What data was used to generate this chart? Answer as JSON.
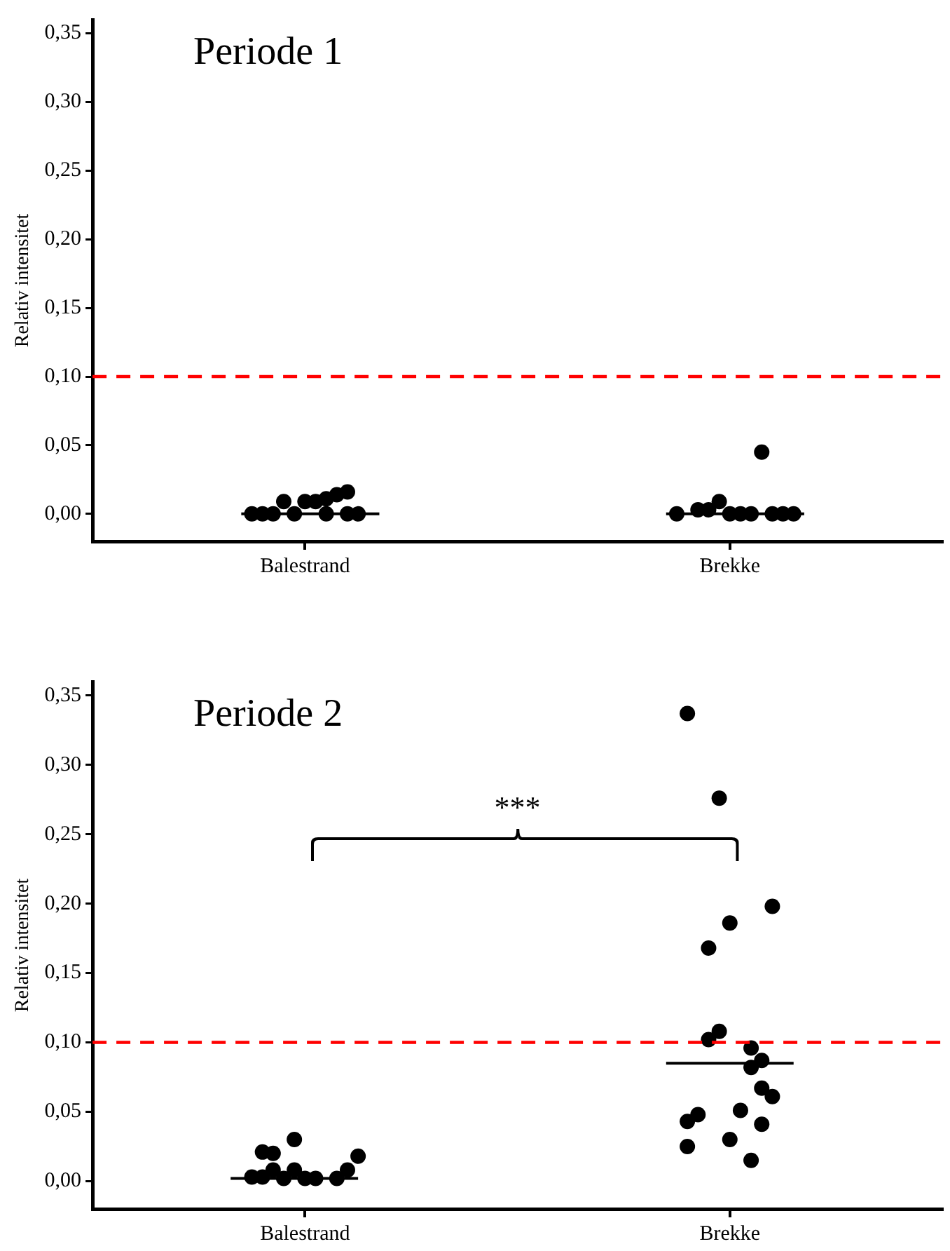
{
  "chart_data": [
    {
      "type": "scatter",
      "title": "Periode 1",
      "ylabel": "Relativ intensitet",
      "categories": [
        null,
        null,
        null,
        null,
        null,
        null,
        null,
        null,
        null,
        null,
        null,
        null,
        null,
        null,
        null,
        null,
        null,
        null,
        null,
        null,
        "Balestrand",
        null,
        null,
        null,
        null,
        null,
        null,
        null,
        null,
        null,
        null,
        null,
        null,
        null,
        null,
        null,
        null,
        null,
        null,
        null,
        null,
        null,
        null,
        null,
        null,
        null,
        null,
        null,
        null,
        null,
        null,
        null,
        null,
        null,
        null,
        null,
        null,
        null,
        null,
        null,
        "Brekke",
        null,
        null,
        null,
        null,
        null,
        null,
        null,
        null,
        null,
        null,
        null,
        null,
        null,
        null,
        null,
        null,
        null,
        null,
        null,
        null
      ],
      "ylim": [
        -0.02,
        0.36
      ],
      "yticks": [
        {
          "value": 0,
          "label": "0,00"
        },
        {
          "value": 0.05,
          "label": "0,05"
        },
        {
          "value": 0.1,
          "label": "0,10"
        },
        {
          "value": 0.15,
          "label": "0,15"
        },
        {
          "value": 0.2,
          "label": "0,20"
        },
        {
          "value": 0.25,
          "label": "0,25"
        },
        {
          "value": 0.3,
          "label": "0,30"
        },
        {
          "value": 0.35,
          "label": "0,35"
        }
      ],
      "grid": false,
      "legend": false,
      "marker": "circle",
      "ref_lines": [
        {
          "axis": "y",
          "value": 0.1,
          "color": "#ff0000",
          "line_style": "dashed"
        }
      ],
      "series": [
        {
          "type": "scatter",
          "color": "#000000",
          "values": [
            null,
            null,
            null,
            null,
            null,
            null,
            null,
            null,
            null,
            null,
            null,
            null,
            null,
            null,
            null,
            0,
            0,
            0,
            0.009,
            0,
            0.009,
            0.009,
            0.011,
            0.014,
            0.016,
            0,
            null,
            null,
            null,
            null,
            null,
            null,
            null,
            null,
            null,
            null,
            null,
            null,
            null,
            null,
            null,
            null,
            null,
            null,
            null,
            null,
            null,
            null,
            null,
            null,
            null,
            null,
            null,
            null,
            null,
            0,
            null,
            0.003,
            0.003,
            0.009,
            0,
            0,
            0,
            0.045,
            0,
            0,
            0,
            null,
            null,
            null,
            null,
            null,
            null,
            null,
            null,
            null,
            null,
            null,
            null,
            null,
            null
          ]
        },
        {
          "type": "scatter",
          "color": "#000000",
          "values": [
            null,
            null,
            null,
            null,
            null,
            null,
            null,
            null,
            null,
            null,
            null,
            null,
            null,
            null,
            null,
            null,
            null,
            null,
            null,
            null,
            null,
            null,
            0,
            null,
            0,
            null,
            null,
            null,
            null,
            null,
            null,
            null,
            null,
            null,
            null,
            null,
            null,
            null,
            null,
            null,
            null,
            null,
            null,
            null,
            null,
            null,
            null,
            null,
            null,
            null,
            null,
            null,
            null,
            null,
            null,
            null,
            null,
            null,
            null,
            null,
            null,
            null,
            null,
            null,
            null,
            null,
            null,
            null,
            null,
            null,
            null,
            null,
            null,
            null,
            null,
            null,
            null,
            null,
            null,
            null,
            null
          ]
        },
        {
          "type": "line",
          "color": "#000000",
          "marker": "none",
          "values": [
            null,
            null,
            null,
            null,
            null,
            null,
            null,
            null,
            null,
            null,
            null,
            null,
            null,
            null,
            0,
            0,
            0,
            0,
            0,
            0,
            0,
            0,
            0,
            0,
            0,
            0,
            0,
            0,
            null,
            null,
            null,
            null,
            null,
            null,
            null,
            null,
            null,
            null,
            null,
            null,
            null,
            null,
            null,
            null,
            null,
            null,
            null,
            null,
            null,
            null,
            null,
            null,
            null,
            null,
            0,
            0,
            0,
            0,
            0,
            0,
            0,
            0,
            0,
            0,
            0,
            0,
            0,
            0,
            null,
            null,
            null,
            null,
            null,
            null,
            null,
            null,
            null,
            null,
            null,
            null,
            null
          ]
        }
      ]
    },
    {
      "type": "scatter",
      "title": "Periode 2",
      "ylabel": "Relativ intensitet",
      "categories": [
        null,
        null,
        null,
        null,
        null,
        null,
        null,
        null,
        null,
        null,
        null,
        null,
        null,
        null,
        null,
        null,
        null,
        null,
        null,
        null,
        "Balestrand",
        null,
        null,
        null,
        null,
        null,
        null,
        null,
        null,
        null,
        null,
        null,
        null,
        null,
        null,
        null,
        null,
        null,
        null,
        null,
        null,
        null,
        null,
        null,
        null,
        null,
        null,
        null,
        null,
        null,
        null,
        null,
        null,
        null,
        null,
        null,
        null,
        null,
        null,
        null,
        "Brekke",
        null,
        null,
        null,
        null,
        null,
        null,
        null,
        null,
        null,
        null,
        null,
        null,
        null,
        null,
        null,
        null,
        null,
        null,
        null,
        null
      ],
      "ylim": [
        -0.02,
        0.36
      ],
      "yticks": [
        {
          "value": 0,
          "label": "0,00"
        },
        {
          "value": 0.05,
          "label": "0,05"
        },
        {
          "value": 0.1,
          "label": "0,10"
        },
        {
          "value": 0.15,
          "label": "0,15"
        },
        {
          "value": 0.2,
          "label": "0,20"
        },
        {
          "value": 0.25,
          "label": "0,25"
        },
        {
          "value": 0.3,
          "label": "0,30"
        },
        {
          "value": 0.35,
          "label": "0,35"
        }
      ],
      "grid": false,
      "legend": false,
      "marker": "circle",
      "ref_lines": [
        {
          "axis": "y",
          "value": 0.1,
          "color": "#ff0000",
          "line_style": "dashed"
        }
      ],
      "annotations": [
        "***"
      ],
      "series": [
        {
          "type": "scatter",
          "color": "#000000",
          "values": [
            null,
            null,
            null,
            null,
            null,
            null,
            null,
            null,
            null,
            null,
            null,
            null,
            null,
            null,
            null,
            0.003,
            0.021,
            0.02,
            0.002,
            0.03,
            0.002,
            0.002,
            null,
            0.002,
            0.008,
            0.018,
            null,
            null,
            null,
            null,
            null,
            null,
            null,
            null,
            null,
            null,
            null,
            null,
            null,
            null,
            null,
            null,
            null,
            null,
            null,
            null,
            null,
            null,
            null,
            null,
            null,
            null,
            null,
            null,
            null,
            null,
            0.337,
            0.048,
            0.168,
            0.276,
            0.186,
            0.051,
            0.096,
            0.087,
            0.198,
            null,
            null,
            null,
            null,
            null,
            null,
            null,
            null,
            null,
            null,
            null,
            null,
            null,
            null,
            null,
            null
          ]
        },
        {
          "type": "scatter",
          "color": "#000000",
          "values": [
            null,
            null,
            null,
            null,
            null,
            null,
            null,
            null,
            null,
            null,
            null,
            null,
            null,
            null,
            null,
            null,
            0.003,
            0.008,
            null,
            0.008,
            null,
            null,
            null,
            null,
            null,
            null,
            null,
            null,
            null,
            null,
            null,
            null,
            null,
            null,
            null,
            null,
            null,
            null,
            null,
            null,
            null,
            null,
            null,
            null,
            null,
            null,
            null,
            null,
            null,
            null,
            null,
            null,
            null,
            null,
            null,
            null,
            0.043,
            null,
            0.102,
            0.108,
            0.03,
            null,
            0.082,
            0.067,
            0.061,
            null,
            null,
            null,
            null,
            null,
            null,
            null,
            null,
            null,
            null,
            null,
            null,
            null,
            null,
            null,
            null
          ]
        },
        {
          "type": "scatter",
          "color": "#000000",
          "values": [
            null,
            null,
            null,
            null,
            null,
            null,
            null,
            null,
            null,
            null,
            null,
            null,
            null,
            null,
            null,
            null,
            null,
            null,
            null,
            null,
            null,
            null,
            null,
            null,
            null,
            null,
            null,
            null,
            null,
            null,
            null,
            null,
            null,
            null,
            null,
            null,
            null,
            null,
            null,
            null,
            null,
            null,
            null,
            null,
            null,
            null,
            null,
            null,
            null,
            null,
            null,
            null,
            null,
            null,
            null,
            null,
            0.025,
            null,
            null,
            null,
            null,
            null,
            0.015,
            0.041,
            null,
            null,
            null,
            null,
            null,
            null,
            null,
            null,
            null,
            null,
            null,
            null,
            null,
            null,
            null,
            null,
            null
          ]
        },
        {
          "type": "line",
          "color": "#000000",
          "marker": "none",
          "values": [
            null,
            null,
            null,
            null,
            null,
            null,
            null,
            null,
            null,
            null,
            null,
            null,
            null,
            0.002,
            0.002,
            0.002,
            0.002,
            0.002,
            0.002,
            0.002,
            0.002,
            0.002,
            0.002,
            0.002,
            0.002,
            0.002,
            null,
            null,
            null,
            null,
            null,
            null,
            null,
            null,
            null,
            null,
            null,
            null,
            null,
            null,
            null,
            null,
            null,
            null,
            null,
            null,
            null,
            null,
            null,
            null,
            null,
            null,
            null,
            null,
            0.085,
            0.085,
            0.085,
            0.085,
            0.085,
            0.085,
            0.085,
            0.085,
            0.085,
            0.085,
            0.085,
            0.085,
            0.085,
            null,
            null,
            null,
            null,
            null,
            null,
            null,
            null,
            null,
            null,
            null,
            null,
            null,
            null
          ]
        }
      ]
    }
  ]
}
